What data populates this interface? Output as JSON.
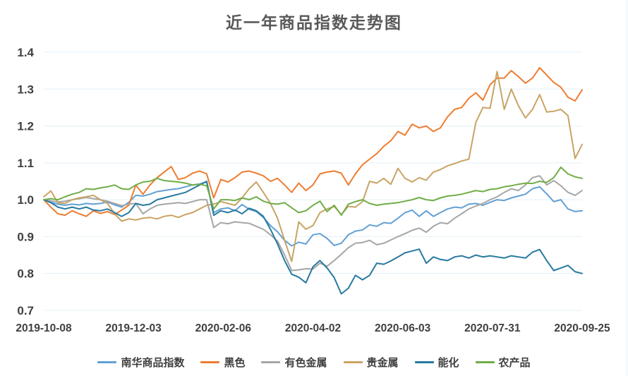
{
  "chart_data": {
    "type": "line",
    "title": "近一年商品指数走势图",
    "xlabel": "",
    "ylabel": "",
    "ylim": [
      0.7,
      1.4
    ],
    "grid": "horizontal",
    "legend_position": "bottom",
    "y_tick_labels": [
      "1.4",
      "1.3",
      "1.2",
      "1.1",
      "1.0",
      "0.9",
      "0.8",
      "0.7"
    ],
    "x_tick_labels": [
      "2019-10-08",
      "2019-12-03",
      "2020-02-06",
      "2020-04-02",
      "2020-06-03",
      "2020-07-31",
      "2020-09-25"
    ],
    "colors": {
      "background": "#FFFFFF",
      "gridline": "#E4F0F8",
      "title_text": "#595959",
      "axis_text": "#404040"
    },
    "series": [
      {
        "name": "南华商品指数",
        "color": "#63A0D4",
        "values": [
          1.0,
          0.993,
          0.988,
          0.985,
          0.988,
          0.986,
          0.99,
          0.988,
          0.99,
          0.994,
          0.986,
          0.98,
          0.993,
          1.012,
          1.01,
          1.015,
          1.022,
          1.025,
          1.028,
          1.03,
          1.035,
          1.04,
          1.043,
          1.048,
          0.965,
          0.975,
          0.978,
          0.97,
          0.987,
          0.974,
          0.968,
          0.952,
          0.93,
          0.913,
          0.89,
          0.875,
          0.885,
          0.88,
          0.905,
          0.908,
          0.895,
          0.876,
          0.882,
          0.905,
          0.915,
          0.918,
          0.932,
          0.928,
          0.938,
          0.936,
          0.95,
          0.965,
          0.972,
          0.955,
          0.97,
          0.955,
          0.965,
          0.975,
          0.98,
          0.978,
          0.988,
          0.99,
          0.985,
          0.993,
          1.0,
          0.998,
          1.005,
          1.01,
          1.015,
          1.03,
          1.035,
          1.016,
          0.995,
          1.0,
          0.975,
          0.968,
          0.97
        ]
      },
      {
        "name": "黑色",
        "color": "#ED7D31",
        "values": [
          1.0,
          0.98,
          0.962,
          0.958,
          0.97,
          0.962,
          0.955,
          0.97,
          0.963,
          0.968,
          0.96,
          0.972,
          0.985,
          1.04,
          1.015,
          1.04,
          1.06,
          1.075,
          1.09,
          1.055,
          1.06,
          1.072,
          1.078,
          1.07,
          1.005,
          1.055,
          1.048,
          1.06,
          1.075,
          1.078,
          1.072,
          1.065,
          1.05,
          1.058,
          1.04,
          1.02,
          1.045,
          1.025,
          1.04,
          1.07,
          1.075,
          1.078,
          1.072,
          1.04,
          1.07,
          1.095,
          1.11,
          1.125,
          1.145,
          1.16,
          1.185,
          1.175,
          1.205,
          1.195,
          1.2,
          1.185,
          1.195,
          1.225,
          1.245,
          1.25,
          1.275,
          1.29,
          1.27,
          1.312,
          1.33,
          1.33,
          1.35,
          1.334,
          1.316,
          1.33,
          1.358,
          1.338,
          1.318,
          1.305,
          1.278,
          1.268,
          1.298
        ]
      },
      {
        "name": "有色金属",
        "color": "#A6A6A6",
        "values": [
          1.0,
          0.997,
          0.994,
          0.996,
          1.0,
          1.003,
          1.006,
          1.003,
          1.0,
          0.996,
          0.99,
          0.984,
          0.988,
          0.99,
          0.962,
          0.975,
          0.985,
          0.988,
          0.99,
          0.992,
          0.99,
          0.995,
          1.0,
          1.0,
          0.925,
          0.938,
          0.935,
          0.94,
          0.938,
          0.936,
          0.928,
          0.92,
          0.905,
          0.888,
          0.85,
          0.808,
          0.81,
          0.813,
          0.812,
          0.828,
          0.82,
          0.835,
          0.852,
          0.87,
          0.882,
          0.884,
          0.89,
          0.878,
          0.882,
          0.891,
          0.9,
          0.908,
          0.917,
          0.923,
          0.912,
          0.928,
          0.938,
          0.935,
          0.95,
          0.962,
          0.975,
          0.983,
          0.99,
          1.0,
          1.008,
          1.02,
          1.03,
          1.025,
          1.04,
          1.06,
          1.065,
          1.04,
          1.052,
          1.038,
          1.02,
          1.012,
          1.025
        ]
      },
      {
        "name": "贵金属",
        "color": "#C8A464",
        "values": [
          1.008,
          1.024,
          0.992,
          0.99,
          1.0,
          1.005,
          1.008,
          1.012,
          1.0,
          0.99,
          0.962,
          0.942,
          0.948,
          0.945,
          0.95,
          0.952,
          0.948,
          0.955,
          0.958,
          0.952,
          0.96,
          0.965,
          0.975,
          0.985,
          0.988,
          0.995,
          0.99,
          0.985,
          1.005,
          1.03,
          1.048,
          1.02,
          0.99,
          0.95,
          0.89,
          0.833,
          0.94,
          0.92,
          0.93,
          0.965,
          0.975,
          0.982,
          0.96,
          0.982,
          0.98,
          0.995,
          1.05,
          1.045,
          1.058,
          1.042,
          1.085,
          1.058,
          1.048,
          1.06,
          1.053,
          1.075,
          1.082,
          1.092,
          1.098,
          1.105,
          1.11,
          1.21,
          1.25,
          1.248,
          1.348,
          1.245,
          1.3,
          1.255,
          1.222,
          1.245,
          1.285,
          1.238,
          1.24,
          1.245,
          1.228,
          1.112,
          1.15
        ]
      },
      {
        "name": "能化",
        "color": "#27799F",
        "values": [
          1.0,
          0.992,
          0.98,
          0.975,
          0.98,
          0.975,
          0.98,
          0.972,
          0.97,
          0.975,
          0.965,
          0.955,
          0.965,
          0.99,
          0.985,
          0.988,
          1.0,
          1.005,
          1.01,
          1.015,
          1.02,
          1.03,
          1.04,
          1.05,
          0.958,
          0.97,
          0.965,
          0.972,
          0.962,
          0.977,
          0.97,
          0.955,
          0.92,
          0.88,
          0.835,
          0.798,
          0.79,
          0.775,
          0.818,
          0.835,
          0.815,
          0.789,
          0.745,
          0.76,
          0.795,
          0.783,
          0.795,
          0.828,
          0.825,
          0.834,
          0.845,
          0.856,
          0.861,
          0.866,
          0.828,
          0.845,
          0.838,
          0.835,
          0.845,
          0.848,
          0.842,
          0.85,
          0.845,
          0.848,
          0.845,
          0.842,
          0.848,
          0.845,
          0.842,
          0.858,
          0.865,
          0.835,
          0.808,
          0.815,
          0.822,
          0.805,
          0.8
        ]
      },
      {
        "name": "农产品",
        "color": "#70AD47",
        "values": [
          1.0,
          1.003,
          1.0,
          1.008,
          1.015,
          1.02,
          1.03,
          1.028,
          1.032,
          1.035,
          1.04,
          1.03,
          1.028,
          1.04,
          1.048,
          1.05,
          1.058,
          1.052,
          1.05,
          1.048,
          1.045,
          1.04,
          1.042,
          1.038,
          0.975,
          1.0,
          1.0,
          0.998,
          1.005,
          1.0,
          1.008,
          0.996,
          0.99,
          0.988,
          0.992,
          0.978,
          0.965,
          0.97,
          0.985,
          0.996,
          0.968,
          0.985,
          0.958,
          0.988,
          0.995,
          1.0,
          0.99,
          0.985,
          0.988,
          0.99,
          0.992,
          0.996,
          1.0,
          1.006,
          1.0,
          0.998,
          1.005,
          1.01,
          1.012,
          1.015,
          1.02,
          1.025,
          1.022,
          1.028,
          1.03,
          1.035,
          1.038,
          1.042,
          1.045,
          1.044,
          1.05,
          1.047,
          1.06,
          1.088,
          1.07,
          1.062,
          1.058
        ]
      }
    ]
  }
}
